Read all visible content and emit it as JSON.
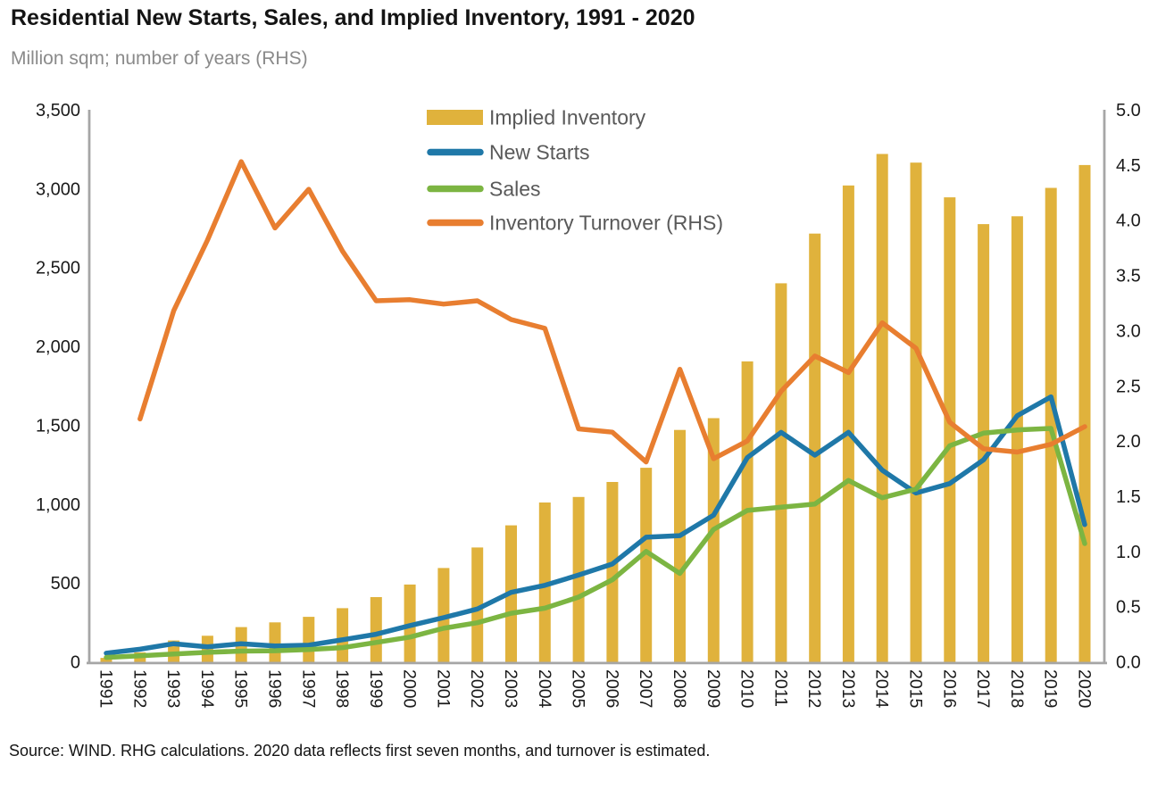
{
  "page": {
    "title": "Residential New Starts, Sales, and Implied Inventory, 1991 - 2020",
    "subtitle": "Million sqm; number of years (RHS)",
    "source": "Source: WIND. RHG calculations. 2020 data reflects first seven months, and turnover is estimated."
  },
  "chart_data": {
    "type": "combo-bar-line",
    "title": "Residential New Starts, Sales, and Implied Inventory, 1991 - 2020",
    "subtitle": "Million sqm; number of years (RHS)",
    "source": "Source: WIND. RHG calculations. 2020 data reflects first seven months, and turnover is estimated.",
    "grid": false,
    "legend_position": "top-center-inside",
    "years": [
      "1991",
      "1992",
      "1993",
      "1994",
      "1995",
      "1996",
      "1997",
      "1998",
      "1999",
      "2000",
      "2001",
      "2002",
      "2003",
      "2004",
      "2005",
      "2006",
      "2007",
      "2008",
      "2009",
      "2010",
      "2011",
      "2012",
      "2013",
      "2014",
      "2015",
      "2016",
      "2017",
      "2018",
      "2019",
      "2020"
    ],
    "left_axis": {
      "min": 0,
      "max": 3500,
      "step": 500,
      "tick_labels": [
        "0",
        "500",
        "1,000",
        "1,500",
        "2,000",
        "2,500",
        "3,000",
        "3,500"
      ]
    },
    "right_axis": {
      "min": 0.0,
      "max": 5.0,
      "step": 0.5,
      "tick_labels": [
        "0.0",
        "0.5",
        "1.0",
        "1.5",
        "2.0",
        "2.5",
        "3.0",
        "3.5",
        "4.0",
        "4.5",
        "5.0"
      ]
    },
    "axis_color": "#a6a6a6",
    "tick_label_color": "#1a1a1a",
    "legend_label_color": "#595959",
    "series": [
      {
        "name": "Implied Inventory",
        "type": "bar",
        "axis": "left",
        "color": "#E0B23C",
        "values": [
          25,
          60,
          135,
          165,
          220,
          250,
          285,
          340,
          410,
          490,
          595,
          725,
          865,
          1010,
          1045,
          1140,
          1230,
          1470,
          1545,
          1905,
          2400,
          2715,
          3020,
          3220,
          3165,
          2945,
          2775,
          2825,
          3005,
          3150
        ]
      },
      {
        "name": "New Starts",
        "type": "line",
        "axis": "left",
        "color": "#1F78A8",
        "values": [
          55,
          80,
          115,
          95,
          115,
          100,
          105,
          140,
          175,
          230,
          280,
          335,
          440,
          485,
          550,
          620,
          790,
          800,
          930,
          1295,
          1455,
          1310,
          1455,
          1215,
          1070,
          1130,
          1280,
          1560,
          1680,
          870
        ]
      },
      {
        "name": "Sales",
        "type": "line",
        "axis": "left",
        "color": "#7CB542",
        "values": [
          28,
          38,
          50,
          60,
          68,
          70,
          78,
          90,
          123,
          157,
          213,
          248,
          308,
          340,
          410,
          520,
          700,
          560,
          840,
          960,
          980,
          1000,
          1150,
          1040,
          1095,
          1370,
          1450,
          1470,
          1480,
          750
        ]
      },
      {
        "name": "Inventory Turnover (RHS)",
        "type": "line",
        "axis": "right",
        "color": "#E87E30",
        "values": [
          null,
          2.2,
          3.18,
          3.82,
          4.53,
          3.93,
          4.28,
          3.72,
          3.27,
          3.28,
          3.24,
          3.27,
          3.1,
          3.02,
          2.11,
          2.08,
          1.81,
          2.65,
          1.84,
          2.0,
          2.45,
          2.77,
          2.62,
          3.07,
          2.84,
          2.17,
          1.93,
          1.9,
          1.97,
          2.13
        ]
      }
    ]
  }
}
